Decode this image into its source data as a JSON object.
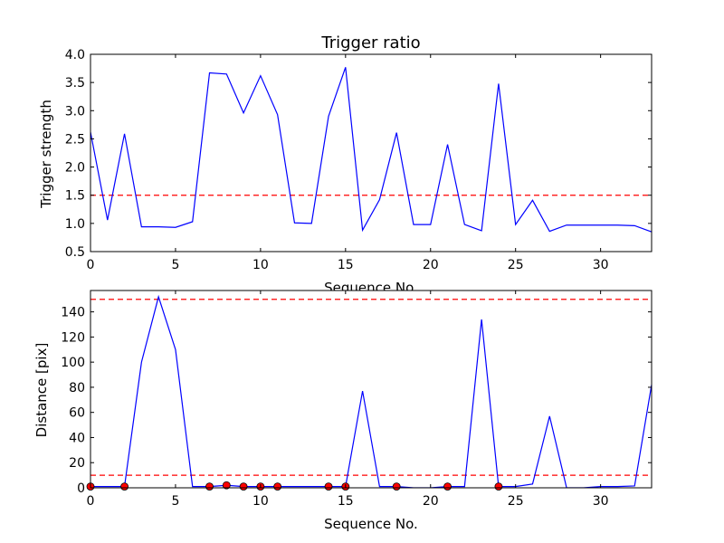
{
  "chart_data": [
    {
      "type": "line",
      "title": "Trigger ratio",
      "xlabel": "Sequence No.",
      "ylabel": "Trigger strength",
      "xlim": [
        0,
        33
      ],
      "ylim": [
        0.5,
        4.0
      ],
      "xticks": [
        "0",
        "5",
        "10",
        "15",
        "20",
        "25",
        "30"
      ],
      "xtick_values": [
        0,
        5,
        10,
        15,
        20,
        25,
        30
      ],
      "yticks": [
        "0.5",
        "1.0",
        "1.5",
        "2.0",
        "2.5",
        "3.0",
        "3.5",
        "4.0"
      ],
      "ytick_values": [
        0.5,
        1.0,
        1.5,
        2.0,
        2.5,
        3.0,
        3.5,
        4.0
      ],
      "grid": false,
      "series": [
        {
          "color": "#0000ff",
          "style": "solid",
          "x": [
            0,
            1,
            2,
            3,
            4,
            5,
            6,
            7,
            8,
            9,
            10,
            11,
            12,
            13,
            14,
            15,
            16,
            17,
            18,
            19,
            20,
            21,
            22,
            23,
            24,
            25,
            26,
            27,
            28,
            29,
            30,
            31,
            32,
            33
          ],
          "y": [
            2.62,
            1.06,
            2.59,
            0.94,
            0.94,
            0.93,
            1.03,
            3.67,
            3.65,
            2.96,
            3.62,
            2.93,
            1.01,
            1.0,
            2.9,
            3.77,
            0.88,
            1.42,
            2.61,
            0.98,
            0.98,
            2.4,
            0.98,
            0.87,
            3.48,
            0.98,
            1.41,
            0.86,
            0.97,
            0.97,
            0.97,
            0.97,
            0.96,
            0.85
          ]
        }
      ],
      "reference_lines": [
        {
          "axis": "y",
          "value": 1.5,
          "color": "#ff0000",
          "style": "dashed"
        }
      ]
    },
    {
      "type": "line",
      "title": "",
      "xlabel": "Sequence No.",
      "ylabel": "Distance [pix]",
      "xlim": [
        0,
        33
      ],
      "ylim": [
        0,
        157
      ],
      "xticks": [
        "0",
        "5",
        "10",
        "15",
        "20",
        "25",
        "30"
      ],
      "xtick_values": [
        0,
        5,
        10,
        15,
        20,
        25,
        30
      ],
      "yticks": [
        "0",
        "20",
        "40",
        "60",
        "80",
        "100",
        "120",
        "140"
      ],
      "ytick_values": [
        0,
        20,
        40,
        60,
        80,
        100,
        120,
        140
      ],
      "grid": false,
      "series": [
        {
          "color": "#0000ff",
          "style": "solid",
          "x": [
            0,
            1,
            2,
            3,
            4,
            5,
            6,
            7,
            8,
            9,
            10,
            11,
            12,
            13,
            14,
            15,
            16,
            17,
            18,
            19,
            20,
            21,
            22,
            23,
            24,
            25,
            26,
            27,
            28,
            29,
            30,
            31,
            32,
            33
          ],
          "y": [
            1,
            1,
            1,
            100,
            152,
            110,
            1,
            1,
            2,
            1,
            1,
            1,
            1,
            1,
            1,
            1,
            77,
            1,
            1,
            0,
            0,
            1,
            1,
            134,
            1,
            1,
            3,
            57,
            0,
            0,
            1,
            1,
            1.5,
            82
          ]
        },
        {
          "color": "#ff0000",
          "style": "markers",
          "x": [
            0,
            2,
            7,
            8,
            9,
            10,
            11,
            14,
            15,
            18,
            21,
            24
          ],
          "y": [
            1,
            1,
            1,
            2,
            1,
            1,
            1,
            1,
            1,
            1,
            1,
            1
          ]
        }
      ],
      "reference_lines": [
        {
          "axis": "y",
          "value": 150,
          "color": "#ff0000",
          "style": "dashed"
        },
        {
          "axis": "y",
          "value": 10,
          "color": "#ff0000",
          "style": "dashed"
        }
      ]
    }
  ]
}
